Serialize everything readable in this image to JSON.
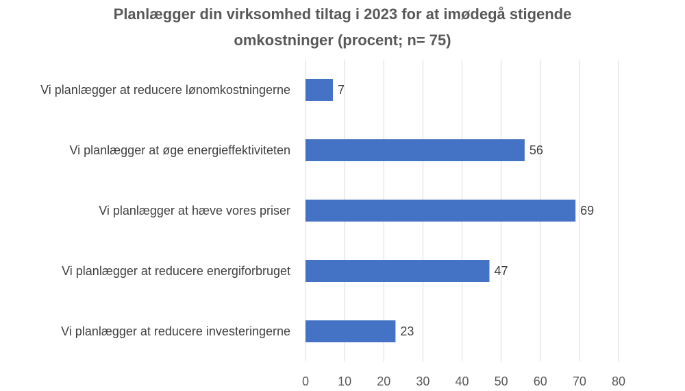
{
  "chart_data": {
    "type": "bar",
    "orientation": "horizontal",
    "title_line1": "Planlægger din virksomhed tiltag i 2023 for at imødegå stigende",
    "title_line2": "omkostninger (procent; n= 75)",
    "categories": [
      "Vi planlægger at reducere lønomkostningerne",
      "Vi planlægger at øge energieffektiviteten",
      "Vi planlægger at hæve vores priser",
      "Vi planlægger at reducere energiforbruget",
      "Vi planlægger at reducere investeringerne"
    ],
    "values": [
      7,
      56,
      69,
      47,
      23
    ],
    "xlim": [
      0,
      80
    ],
    "xticks": [
      0,
      10,
      20,
      30,
      40,
      50,
      60,
      70,
      80
    ],
    "grid": "vertical",
    "data_labels": true,
    "bar_color": "#4472C4",
    "grid_color": "#D9D9D9"
  }
}
